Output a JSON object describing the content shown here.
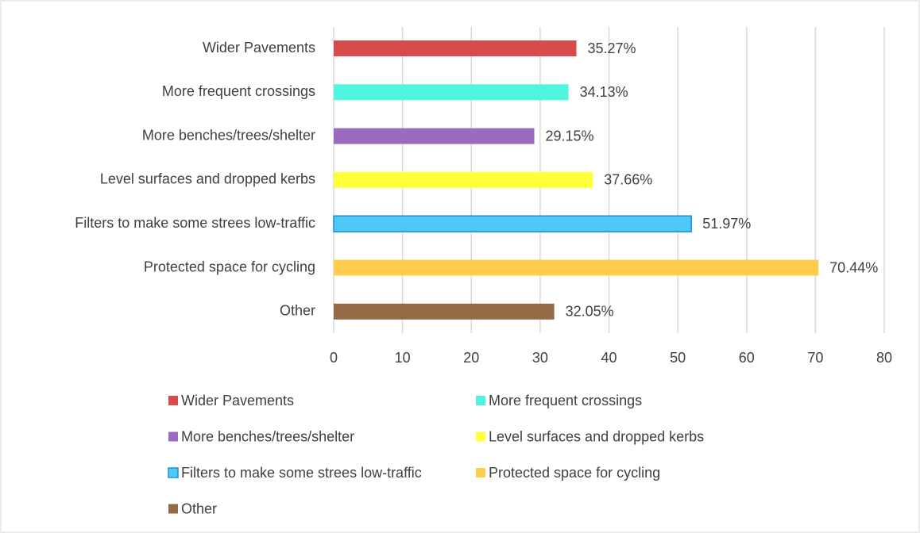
{
  "chart_data": {
    "type": "hbar",
    "categories": [
      "Wider Pavements",
      "More frequent crossings",
      "More benches/trees/shelter",
      "Level surfaces and dropped kerbs",
      "Filters to make some strees low-traffic",
      "Protected space for cycling",
      "Other"
    ],
    "values": [
      35.27,
      34.13,
      29.15,
      37.66,
      51.97,
      70.44,
      32.05
    ],
    "value_labels": [
      "35.27%",
      "34.13%",
      "29.15%",
      "37.66%",
      "51.97%",
      "70.44%",
      "32.05%"
    ],
    "colors": [
      "#d94a4a",
      "#4ff5dc",
      "#9b6bc0",
      "#ffff3a",
      "#4ec8f5",
      "#ffcc4d",
      "#936a45"
    ],
    "xlim": [
      0,
      80
    ],
    "xticks": [
      0,
      10,
      20,
      30,
      40,
      50,
      60,
      70,
      80
    ],
    "grid": true,
    "legend": "bottom"
  }
}
